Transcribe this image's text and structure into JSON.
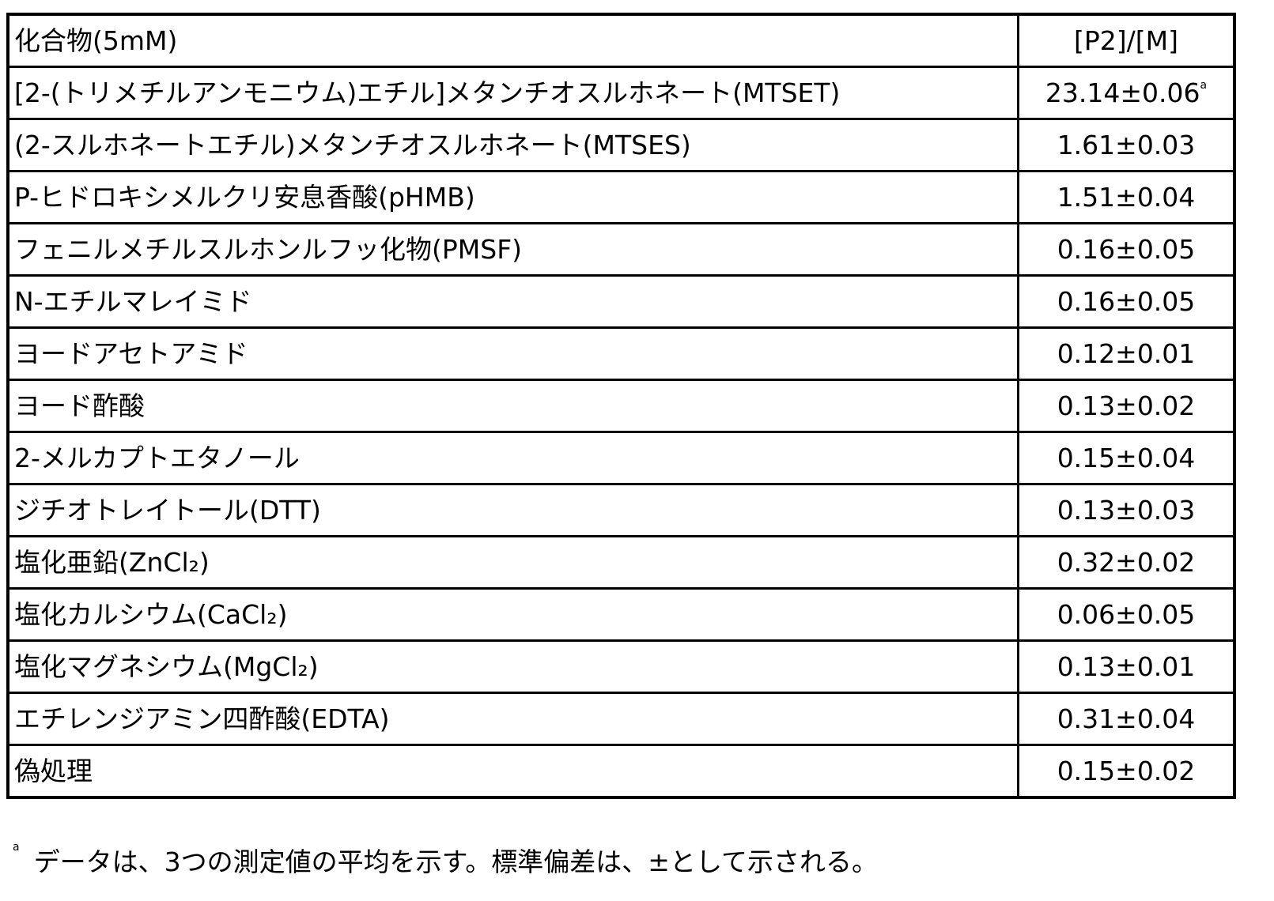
{
  "table": {
    "headers": [
      "化合物(5mM)",
      "[P2]/[M]"
    ],
    "rows": [
      {
        "compound": "[2-(トリメチルアンモニウム)エチル]メタンチオスルホネート(MTSET)",
        "value": "23.14±0.06",
        "note": "a"
      },
      {
        "compound": "(2-スルホネートエチル)メタンチオスルホネート(MTSES)",
        "value": "1.61±0.03"
      },
      {
        "compound": "P-ヒドロキシメルクリ安息香酸(pHMB)",
        "value": "1.51±0.04"
      },
      {
        "compound": "フェニルメチルスルホンルフッ化物(PMSF)",
        "value": "0.16±0.05"
      },
      {
        "compound": "N-エチルマレイミド",
        "value": "0.16±0.05"
      },
      {
        "compound": "ヨードアセトアミド",
        "value": "0.12±0.01"
      },
      {
        "compound": "ヨード酢酸",
        "value": "0.13±0.02"
      },
      {
        "compound": "2-メルカプトエタノール",
        "value": "0.15±0.04"
      },
      {
        "compound": "ジチオトレイトール(DTT)",
        "value": "0.13±0.03"
      },
      {
        "compound": "塩化亜鉛(ZnCl₂)",
        "value": "0.32±0.02"
      },
      {
        "compound": "塩化カルシウム(CaCl₂)",
        "value": "0.06±0.05"
      },
      {
        "compound": "塩化マグネシウム(MgCl₂)",
        "value": "0.13±0.01"
      },
      {
        "compound": "エチレンジアミン四酢酸(EDTA)",
        "value": "0.31±0.04"
      },
      {
        "compound": "偽処理",
        "value": "0.15±0.02"
      }
    ]
  },
  "footnote": {
    "marker": "a",
    "text": "データは、3つの測定値の平均を示す。標準偏差は、±として示される。"
  }
}
